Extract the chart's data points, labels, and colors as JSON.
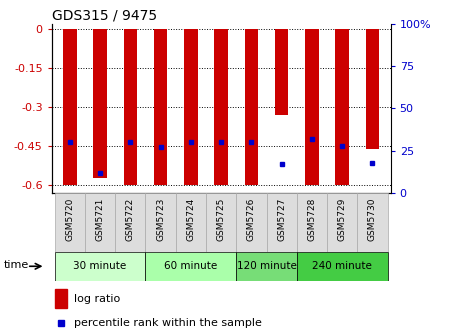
{
  "title": "GDS315 / 9475",
  "samples": [
    "GSM5720",
    "GSM5721",
    "GSM5722",
    "GSM5723",
    "GSM5724",
    "GSM5725",
    "GSM5726",
    "GSM5727",
    "GSM5728",
    "GSM5729",
    "GSM5730"
  ],
  "log_ratios": [
    -0.6,
    -0.57,
    -0.6,
    -0.6,
    -0.6,
    -0.6,
    -0.6,
    -0.33,
    -0.6,
    -0.6,
    -0.46
  ],
  "percentile_ranks": [
    30,
    12,
    30,
    27,
    30,
    30,
    30,
    17,
    32,
    28,
    18
  ],
  "ylim": [
    -0.63,
    0.02
  ],
  "yticks": [
    0,
    -0.15,
    -0.3,
    -0.45,
    -0.6
  ],
  "right_yticks": [
    100,
    75,
    50,
    25,
    0
  ],
  "bar_color": "#cc0000",
  "dot_color": "#0000cc",
  "bar_width": 0.45,
  "time_groups": [
    {
      "label": "30 minute",
      "start": 0,
      "end": 3,
      "color": "#ccffcc"
    },
    {
      "label": "60 minute",
      "start": 3,
      "end": 6,
      "color": "#aaffaa"
    },
    {
      "label": "120 minute",
      "start": 6,
      "end": 8,
      "color": "#77dd77"
    },
    {
      "label": "240 minute",
      "start": 8,
      "end": 11,
      "color": "#44cc44"
    }
  ],
  "grid_color": "#000000",
  "tick_label_color_left": "#cc0000",
  "tick_label_color_right": "#0000cc",
  "legend_log_ratio": "log ratio",
  "legend_percentile": "percentile rank within the sample",
  "sample_box_color": "#dddddd",
  "sample_box_edge": "#aaaaaa"
}
